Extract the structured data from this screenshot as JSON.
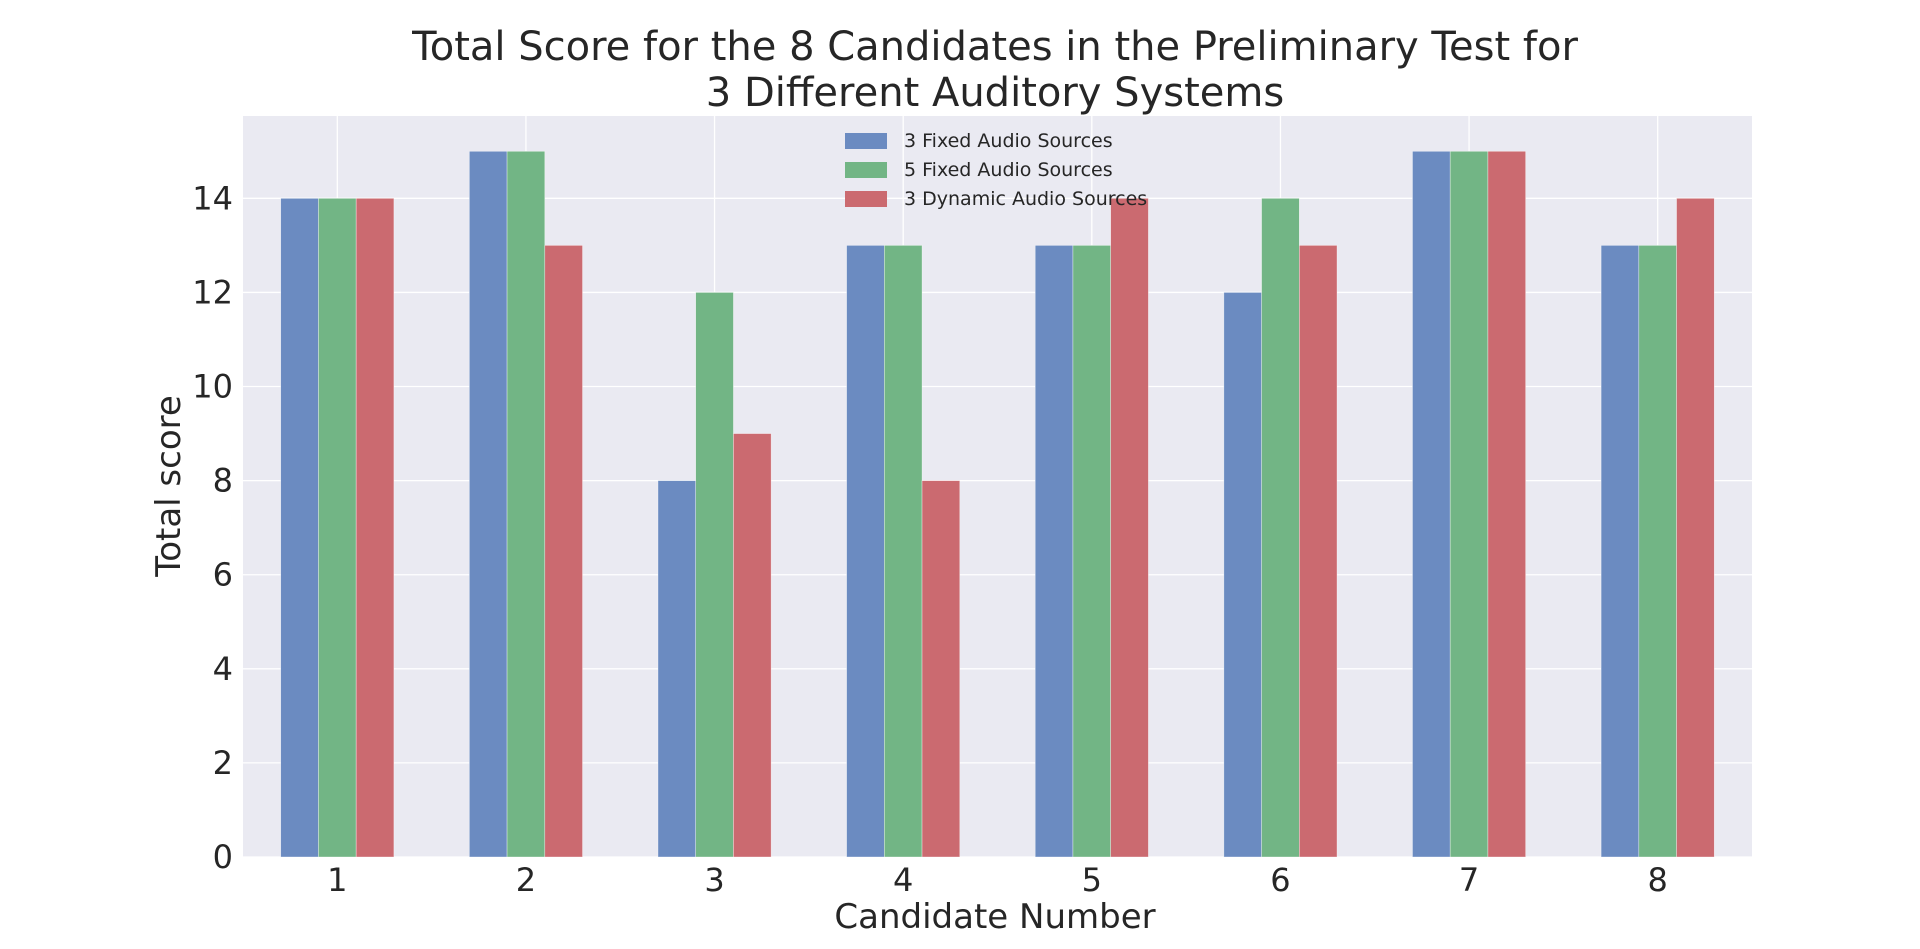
{
  "chart_data": {
    "type": "bar",
    "title_lines": [
      "Total Score for the 8 Candidates in the Preliminary Test for",
      "3 Different Auditory Systems"
    ],
    "xlabel": "Candidate Number",
    "ylabel": "Total score",
    "categories": [
      "1",
      "2",
      "3",
      "4",
      "5",
      "6",
      "7",
      "8"
    ],
    "series": [
      {
        "name": "3 Fixed Audio Sources",
        "color": "#6b8bc1",
        "values": [
          14,
          15,
          8,
          13,
          13,
          12,
          15,
          13
        ]
      },
      {
        "name": "5 Fixed Audio Sources",
        "color": "#72b585",
        "values": [
          14,
          15,
          12,
          13,
          13,
          14,
          15,
          13
        ]
      },
      {
        "name": "3 Dynamic Audio Sources",
        "color": "#cb6a70",
        "values": [
          14,
          13,
          9,
          8,
          14,
          13,
          15,
          14
        ]
      }
    ],
    "ylim": [
      0,
      15.75
    ],
    "yticks": [
      0,
      2,
      4,
      6,
      8,
      10,
      12,
      14
    ],
    "grid": true,
    "legend_position": "top-center",
    "background_color": "#eaeaf2",
    "grid_color": "#ffffff"
  }
}
